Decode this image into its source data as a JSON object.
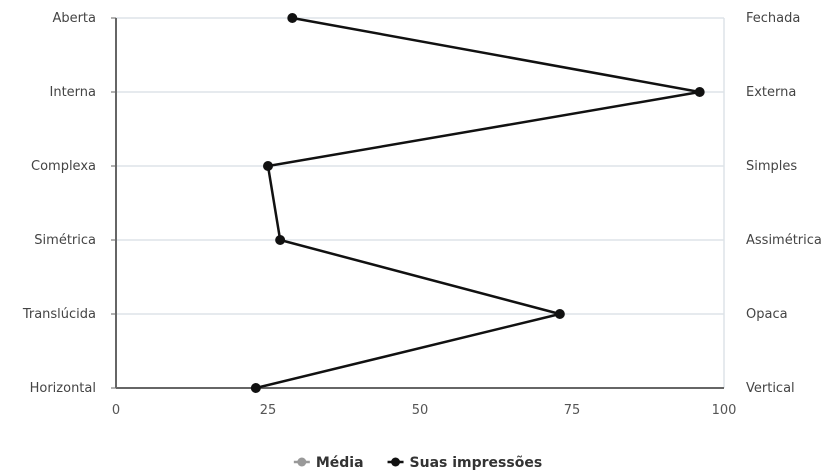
{
  "chart_data": {
    "type": "line",
    "categories_left": [
      "Aberta",
      "Interna",
      "Complexa",
      "Simétrica",
      "Translúcida",
      "Horizontal"
    ],
    "categories_right": [
      "Fechada",
      "Externa",
      "Simples",
      "Assimétrica",
      "Opaca",
      "Vertical"
    ],
    "x_ticks": [
      0,
      25,
      50,
      75,
      100
    ],
    "xlim": [
      0,
      100
    ],
    "grid": true,
    "legend_position": "bottom-center",
    "series": [
      {
        "name": "Média",
        "color": "#999999",
        "values": []
      },
      {
        "name": "Suas impressões",
        "color": "#111111",
        "values": [
          29,
          96,
          25,
          27,
          73,
          23
        ]
      }
    ]
  }
}
